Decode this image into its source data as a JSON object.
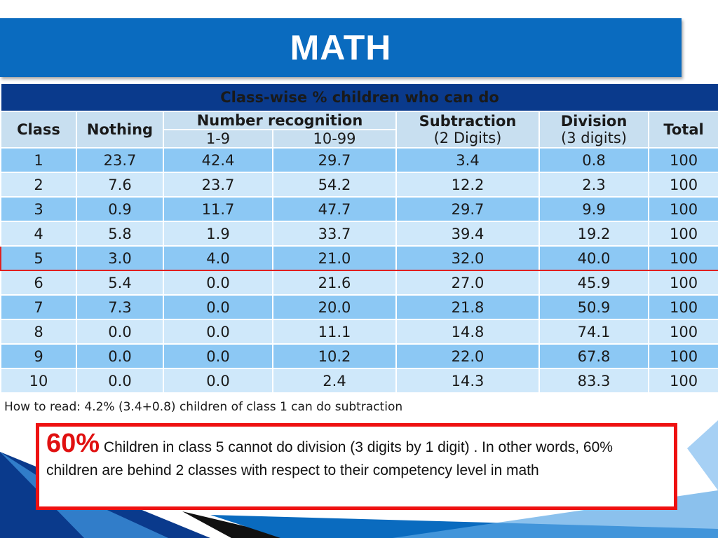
{
  "slide": {
    "title": "MATH"
  },
  "table": {
    "caption": "Class-wise % children who can do",
    "headers": {
      "class": "Class",
      "nothing": "Nothing",
      "number_recognition": "Number recognition",
      "nr_1_9": "1-9",
      "nr_10_99": "10-99",
      "subtraction": "Subtraction",
      "subtraction_sub": "(2 Digits)",
      "division": "Division",
      "division_sub": "(3 digits)",
      "total": "Total"
    },
    "rows": [
      [
        "1",
        "23.7",
        "42.4",
        "29.7",
        "3.4",
        "0.8",
        "100"
      ],
      [
        "2",
        "7.6",
        "23.7",
        "54.2",
        "12.2",
        "2.3",
        "100"
      ],
      [
        "3",
        "0.9",
        "11.7",
        "47.7",
        "29.7",
        "9.9",
        "100"
      ],
      [
        "4",
        "5.8",
        "1.9",
        "33.7",
        "39.4",
        "19.2",
        "100"
      ],
      [
        "5",
        "3.0",
        "4.0",
        "21.0",
        "32.0",
        "40.0",
        "100"
      ],
      [
        "6",
        "5.4",
        "0.0",
        "21.6",
        "27.0",
        "45.9",
        "100"
      ],
      [
        "7",
        "7.3",
        "0.0",
        "20.0",
        "21.8",
        "50.9",
        "100"
      ],
      [
        "8",
        "0.0",
        "0.0",
        "11.1",
        "14.8",
        "74.1",
        "100"
      ],
      [
        "9",
        "0.0",
        "0.0",
        "10.2",
        "22.0",
        "67.8",
        "100"
      ],
      [
        "10",
        "0.0",
        "0.0",
        "2.4",
        "14.3",
        "83.3",
        "100"
      ]
    ],
    "highlighted_row_index": 4,
    "note": "How to read: 4.2% (3.4+0.8) children of class 1 can do subtraction"
  },
  "callout": {
    "percent": "60%",
    "text": "Children in class 5 cannot do division (3 digits by 1 digit) . In other words, 60% children are behind 2 classes with respect to their competency level in math"
  },
  "colors": {
    "title_bar": "#0a6bbf",
    "caption_bar": "#0a3a8c",
    "row_odd": "#8cc8f4",
    "row_even": "#cfe8fa",
    "highlight_border": "#e02020",
    "callout_accent": "#e01010"
  }
}
